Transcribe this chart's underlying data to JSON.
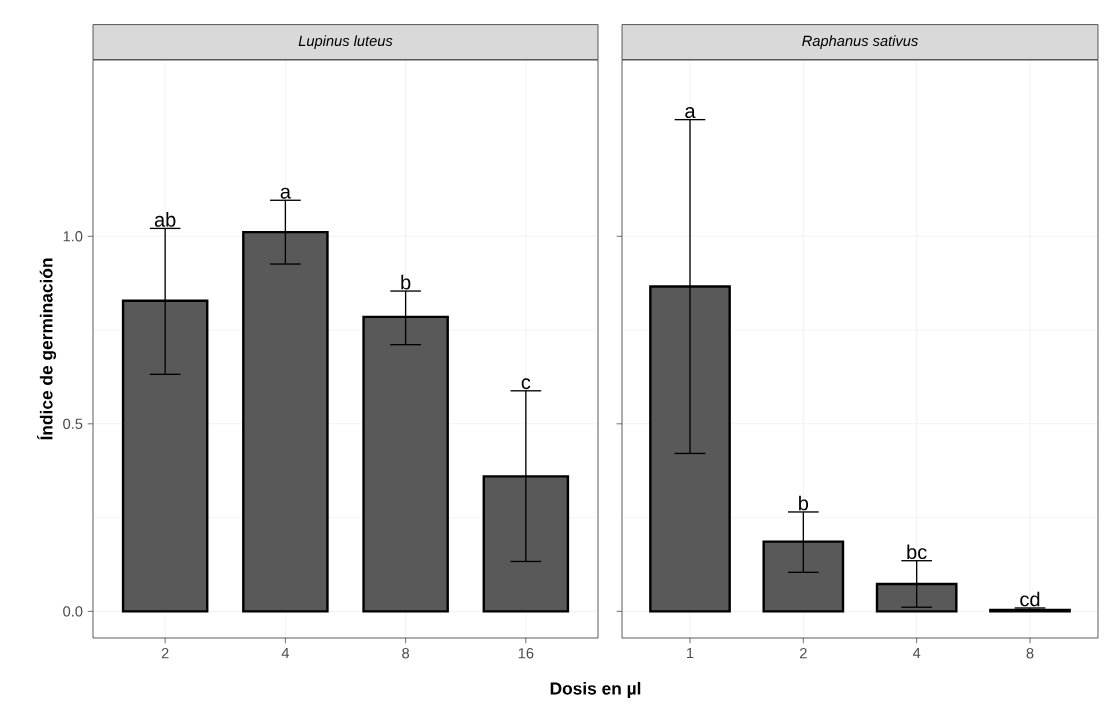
{
  "chart_data": [
    {
      "type": "bar",
      "title": "Lupinus luteus",
      "xlabel": "Dosis en µl",
      "ylabel": "Índice de germinación",
      "categories": [
        "2",
        "4",
        "8",
        "16"
      ],
      "values": [
        0.828,
        1.011,
        0.785,
        0.36
      ],
      "errors": [
        [
          0.632,
          1.021
        ],
        [
          0.926,
          1.096
        ],
        [
          0.711,
          0.854
        ],
        [
          0.133,
          0.588
        ]
      ],
      "color": "#595959",
      "ylim": [
        -0.071,
        1.47
      ],
      "yticks": [
        {
          "value": 0,
          "label": "0.0"
        },
        {
          "value": 0.5,
          "label": "0.5"
        },
        {
          "value": 1,
          "label": "1.0"
        }
      ],
      "grid": true,
      "annotations": [
        {
          "text": "ab",
          "x": "2",
          "y": 1.021
        },
        {
          "text": "a",
          "x": "4",
          "y": 1.096
        },
        {
          "text": "b",
          "x": "8",
          "y": 0.854
        },
        {
          "text": "c",
          "x": "16",
          "y": 0.588
        }
      ]
    },
    {
      "type": "bar",
      "title": "Raphanus sativus",
      "categories": [
        "1",
        "2",
        "4",
        "8"
      ],
      "values": [
        0.866,
        0.186,
        0.073,
        0.004
      ],
      "errors": [
        [
          0.421,
          1.311
        ],
        [
          0.104,
          0.265
        ],
        [
          0.011,
          0.135
        ],
        [
          0.0,
          0.009
        ]
      ],
      "color": "#595959",
      "ylim": [
        -0.071,
        1.47
      ],
      "yticks": [
        {
          "value": 0,
          "label": null
        },
        {
          "value": 0.5,
          "label": null
        },
        {
          "value": 1,
          "label": null
        }
      ],
      "grid": true,
      "tick_labels": "x",
      "annotations": [
        {
          "text": "a",
          "x": "1",
          "y": 1.311
        },
        {
          "text": "b",
          "x": "2",
          "y": 0.265
        },
        {
          "text": "bc",
          "x": "4",
          "y": 0.135
        },
        {
          "text": "cd",
          "x": "8",
          "y": 0.009
        }
      ]
    }
  ]
}
